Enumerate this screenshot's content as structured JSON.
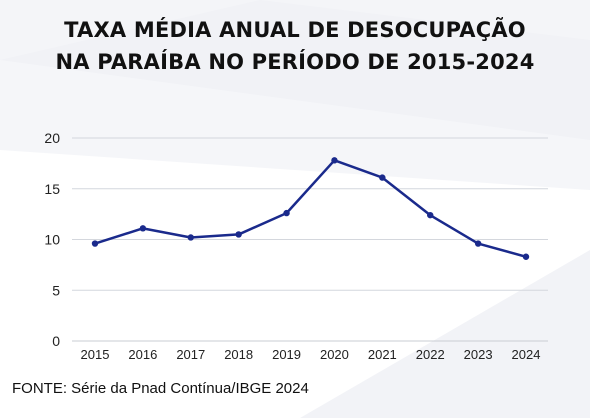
{
  "title_line1": "TAXA MÉDIA ANUAL DE DESOCUPAÇÃO",
  "title_line2": "NA PARAÍBA NO PERÍODO DE 2015-2024",
  "source": "FONTE: Série da Pnad Contínua/IBGE 2024",
  "chart_data": {
    "type": "line",
    "title": "TAXA MÉDIA ANUAL DE DESOCUPAÇÃO NA PARAÍBA NO PERÍODO DE 2015-2024",
    "categories": [
      "2015",
      "2016",
      "2017",
      "2018",
      "2019",
      "2020",
      "2021",
      "2022",
      "2023",
      "2024"
    ],
    "series": [
      {
        "values": [
          9.6,
          11.1,
          10.2,
          10.5,
          12.6,
          17.8,
          16.1,
          12.4,
          9.6,
          8.3
        ]
      }
    ],
    "yticks": [
      0,
      5,
      10,
      15,
      20
    ],
    "ylim": [
      0,
      20
    ],
    "grid": true,
    "line_color": "#1a2a8c"
  }
}
